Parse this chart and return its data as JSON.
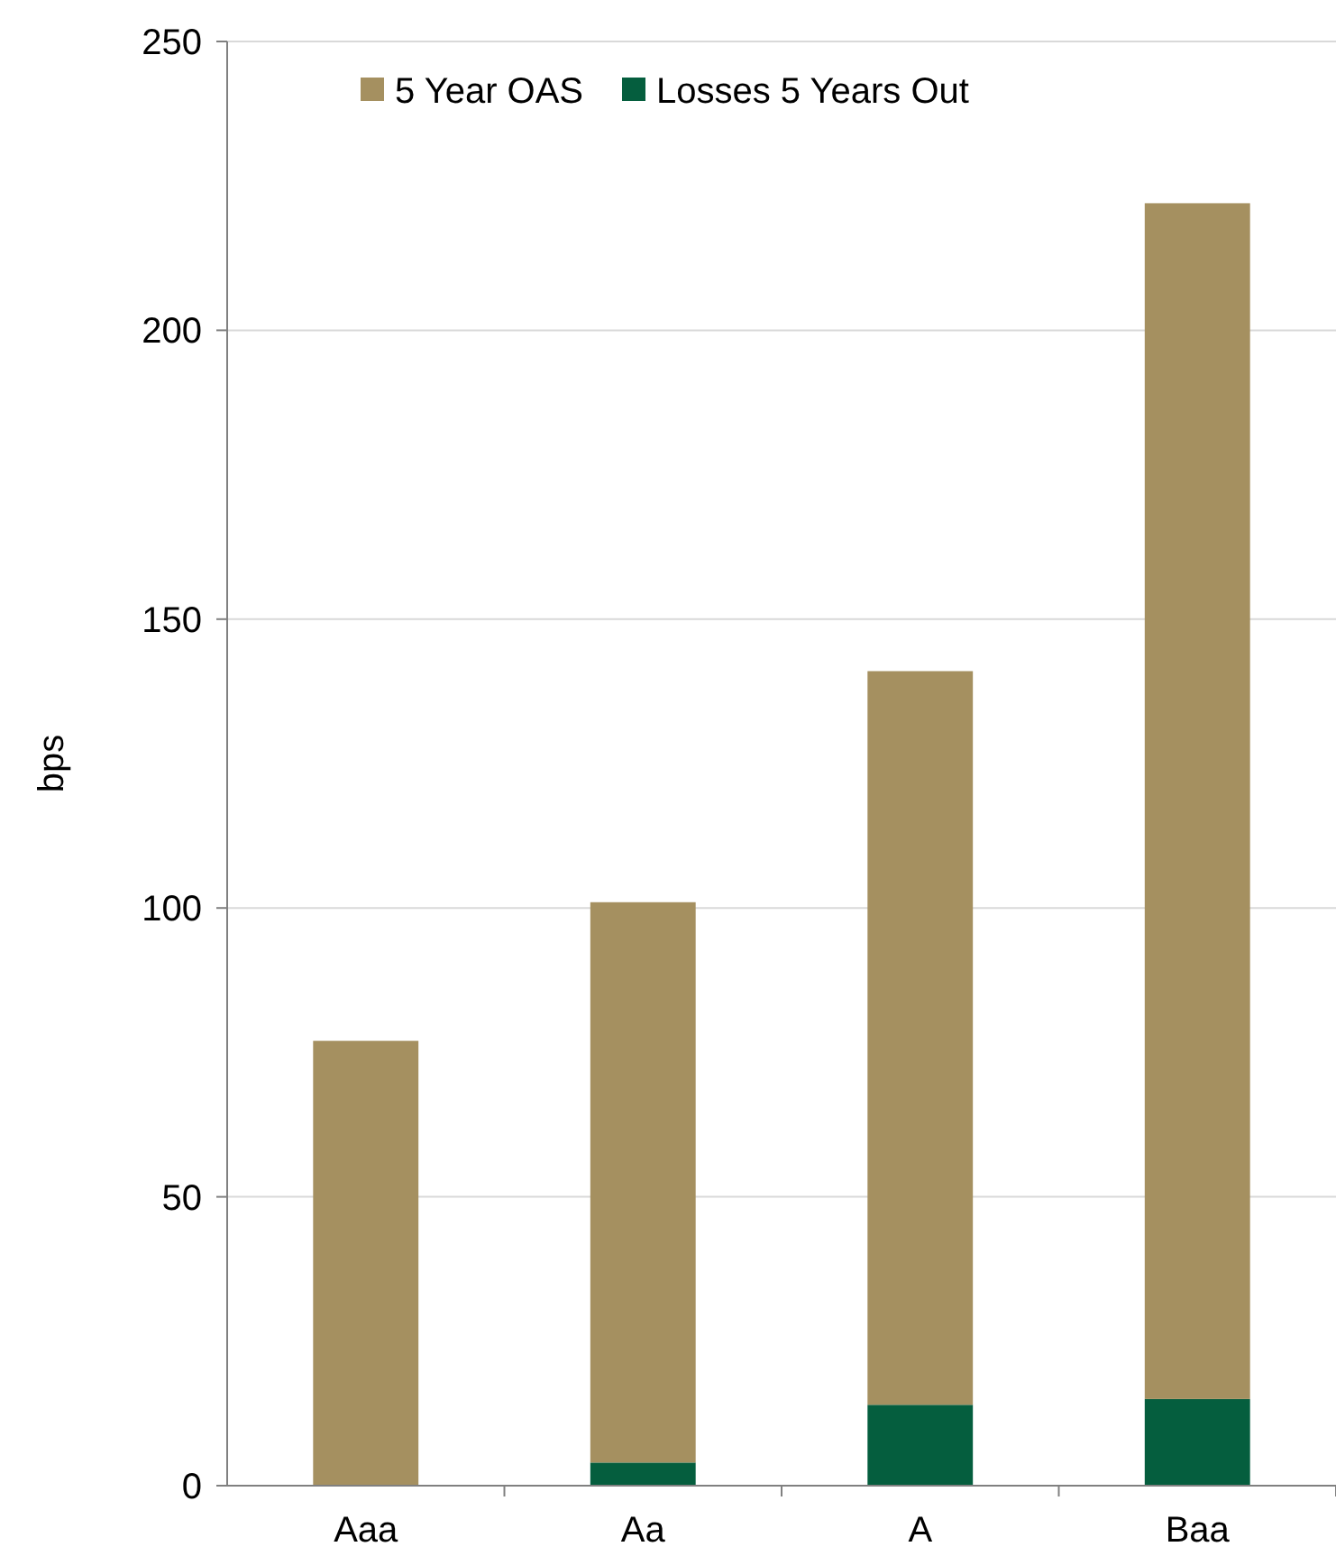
{
  "chart_data": {
    "type": "bar",
    "stacked": true,
    "categories": [
      "Aaa",
      "Aa",
      "A",
      "Baa"
    ],
    "series": [
      {
        "name": "Losses 5 Years Out",
        "color": "#055e3e",
        "values": [
          0,
          4,
          14,
          15
        ]
      },
      {
        "name": "5 Year OAS",
        "color": "#a59060",
        "values": [
          77,
          97,
          127,
          207
        ]
      }
    ],
    "ylabel": "bps",
    "ylim": [
      0,
      250
    ],
    "yticks": [
      0,
      50,
      100,
      150,
      200,
      250
    ],
    "grid": "y",
    "legend": "top"
  }
}
